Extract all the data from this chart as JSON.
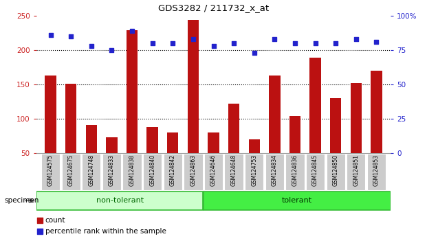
{
  "title": "GDS3282 / 211732_x_at",
  "categories": [
    "GSM124575",
    "GSM124675",
    "GSM124748",
    "GSM124833",
    "GSM124838",
    "GSM124840",
    "GSM124842",
    "GSM124863",
    "GSM124646",
    "GSM124648",
    "GSM124753",
    "GSM124834",
    "GSM124836",
    "GSM124845",
    "GSM124850",
    "GSM124851",
    "GSM124853"
  ],
  "count_values": [
    163,
    151,
    91,
    73,
    229,
    88,
    80,
    244,
    80,
    122,
    70,
    163,
    104,
    189,
    130,
    152,
    170
  ],
  "percentile_values": [
    86,
    85,
    78,
    75,
    89,
    80,
    80,
    83,
    78,
    80,
    73,
    83,
    80,
    80,
    80,
    83,
    81
  ],
  "group_labels": [
    "non-tolerant",
    "tolerant"
  ],
  "group_split": 8,
  "bar_color": "#bb1111",
  "dot_color": "#2222cc",
  "ylim_left": [
    50,
    250
  ],
  "ylim_right": [
    0,
    100
  ],
  "yticks_left": [
    50,
    100,
    150,
    200,
    250
  ],
  "yticks_right": [
    0,
    25,
    50,
    75,
    100
  ],
  "yticklabels_right": [
    "0",
    "25",
    "50",
    "75",
    "100%"
  ],
  "group_colors": [
    "#ccffcc",
    "#44ee44"
  ],
  "group_edge_color": "#33bb33",
  "grid_values": [
    100,
    150,
    200
  ],
  "left_label_color": "#cc2222",
  "right_label_color": "#2222cc",
  "specimen_label": "specimen",
  "legend_count_label": "count",
  "legend_percentile_label": "percentile rank within the sample",
  "tick_bg_color": "#cccccc",
  "tick_edge_color": "#ffffff"
}
